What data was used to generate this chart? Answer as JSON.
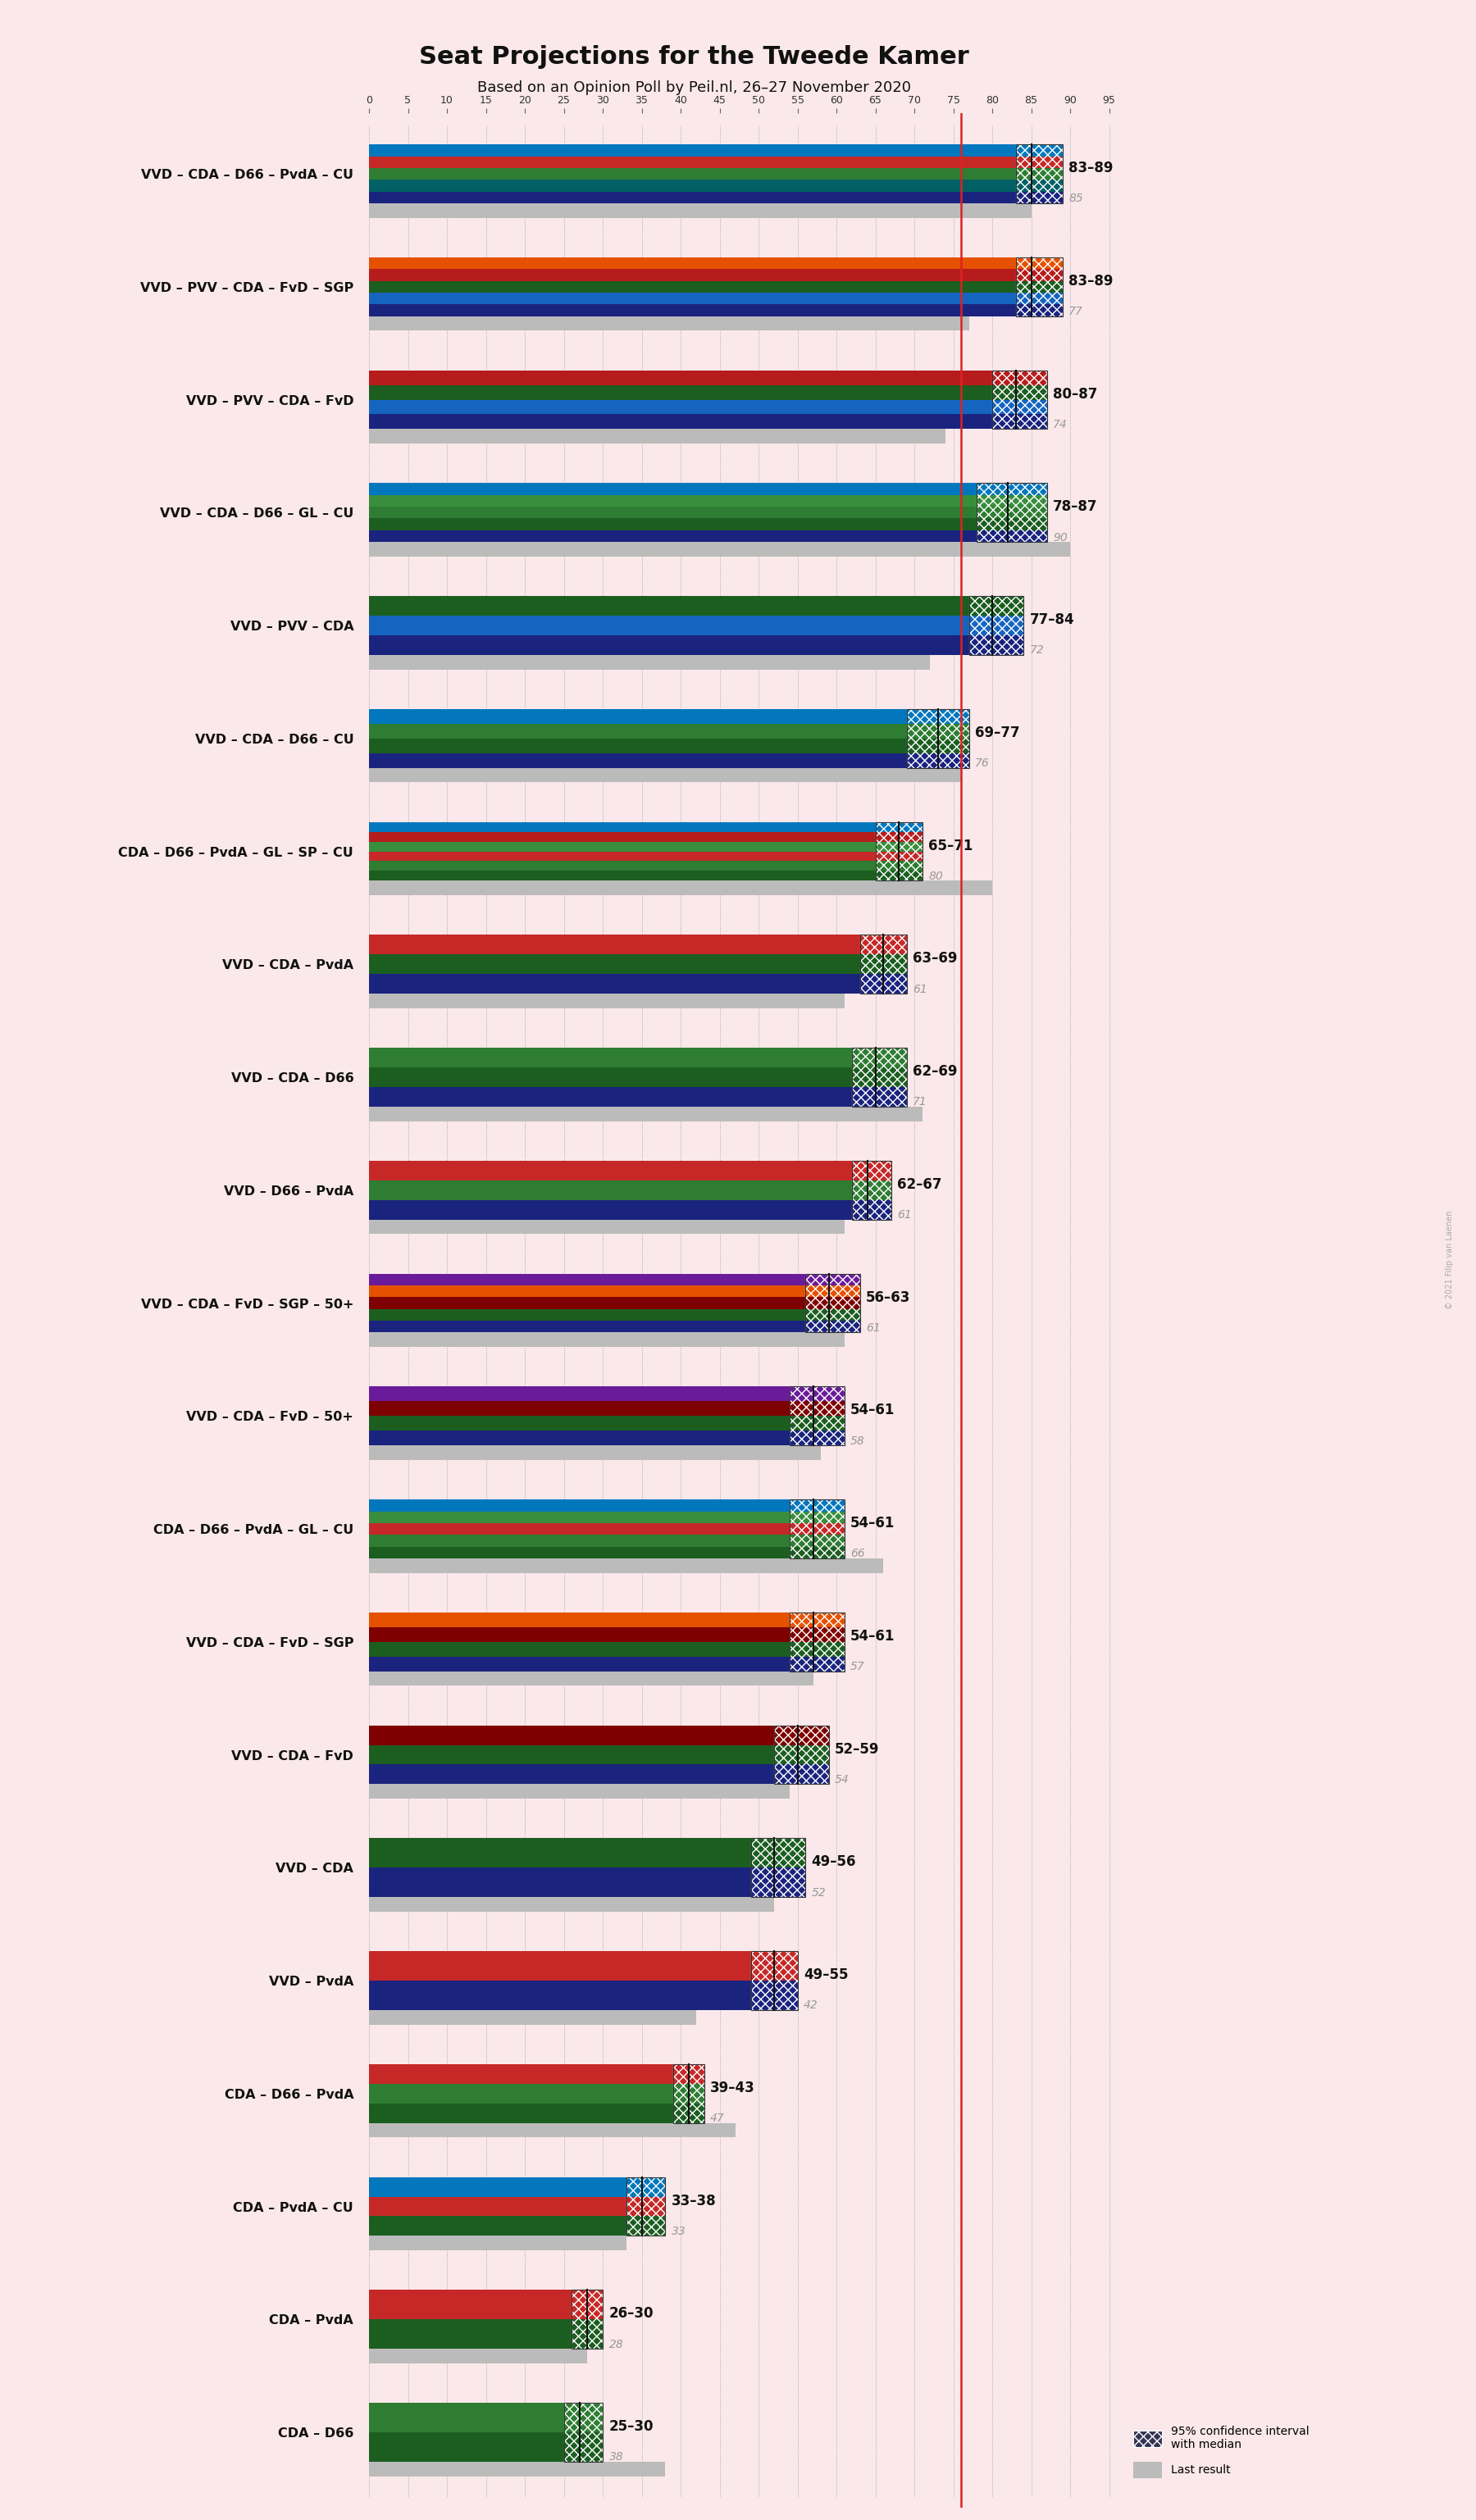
{
  "title": "Seat Projections for the Tweede Kamer",
  "subtitle": "Based on an Opinion Poll by Peil.nl, 26–27 November 2020",
  "background_color": "#fae8ea",
  "majority_line": 76,
  "x_max": 95,
  "coalitions": [
    {
      "name": "VVD – CDA – D66 – PvdA – CU",
      "ci_low": 83,
      "ci_high": 89,
      "median": 85,
      "last": 85,
      "underlined": false
    },
    {
      "name": "VVD – PVV – CDA – FvD – SGP",
      "ci_low": 83,
      "ci_high": 89,
      "median": 85,
      "last": 77,
      "underlined": false
    },
    {
      "name": "VVD – PVV – CDA – FvD",
      "ci_low": 80,
      "ci_high": 87,
      "median": 83,
      "last": 74,
      "underlined": false
    },
    {
      "name": "VVD – CDA – D66 – GL – CU",
      "ci_low": 78,
      "ci_high": 87,
      "median": 82,
      "last": 90,
      "underlined": false
    },
    {
      "name": "VVD – PVV – CDA",
      "ci_low": 77,
      "ci_high": 84,
      "median": 80,
      "last": 72,
      "underlined": false
    },
    {
      "name": "VVD – CDA – D66 – CU",
      "ci_low": 69,
      "ci_high": 77,
      "median": 73,
      "last": 76,
      "underlined": true
    },
    {
      "name": "CDA – D66 – PvdA – GL – SP – CU",
      "ci_low": 65,
      "ci_high": 71,
      "median": 68,
      "last": 80,
      "underlined": false
    },
    {
      "name": "VVD – CDA – PvdA",
      "ci_low": 63,
      "ci_high": 69,
      "median": 66,
      "last": 61,
      "underlined": false
    },
    {
      "name": "VVD – CDA – D66",
      "ci_low": 62,
      "ci_high": 69,
      "median": 65,
      "last": 71,
      "underlined": false
    },
    {
      "name": "VVD – D66 – PvdA",
      "ci_low": 62,
      "ci_high": 67,
      "median": 64,
      "last": 61,
      "underlined": false
    },
    {
      "name": "VVD – CDA – FvD – SGP – 50+",
      "ci_low": 56,
      "ci_high": 63,
      "median": 59,
      "last": 61,
      "underlined": false
    },
    {
      "name": "VVD – CDA – FvD – 50+",
      "ci_low": 54,
      "ci_high": 61,
      "median": 57,
      "last": 58,
      "underlined": false
    },
    {
      "name": "CDA – D66 – PvdA – GL – CU",
      "ci_low": 54,
      "ci_high": 61,
      "median": 57,
      "last": 66,
      "underlined": false
    },
    {
      "name": "VVD – CDA – FvD – SGP",
      "ci_low": 54,
      "ci_high": 61,
      "median": 57,
      "last": 57,
      "underlined": false
    },
    {
      "name": "VVD – CDA – FvD",
      "ci_low": 52,
      "ci_high": 59,
      "median": 55,
      "last": 54,
      "underlined": false
    },
    {
      "name": "VVD – CDA",
      "ci_low": 49,
      "ci_high": 56,
      "median": 52,
      "last": 52,
      "underlined": false
    },
    {
      "name": "VVD – PvdA",
      "ci_low": 49,
      "ci_high": 55,
      "median": 52,
      "last": 42,
      "underlined": false
    },
    {
      "name": "CDA – D66 – PvdA",
      "ci_low": 39,
      "ci_high": 43,
      "median": 41,
      "last": 47,
      "underlined": false
    },
    {
      "name": "CDA – PvdA – CU",
      "ci_low": 33,
      "ci_high": 38,
      "median": 35,
      "last": 33,
      "underlined": false
    },
    {
      "name": "CDA – PvdA",
      "ci_low": 26,
      "ci_high": 30,
      "median": 28,
      "last": 28,
      "underlined": false
    },
    {
      "name": "CDA – D66",
      "ci_low": 25,
      "ci_high": 30,
      "median": 27,
      "last": 38,
      "underlined": false
    }
  ],
  "coalition_colors": [
    [
      "#1a237e",
      "#006064",
      "#2e7d32",
      "#c62828",
      "#0277bd"
    ],
    [
      "#1a237e",
      "#1565c0",
      "#1b5e20",
      "#b71c1c",
      "#e65100"
    ],
    [
      "#1a237e",
      "#1565c0",
      "#1b5e20",
      "#b71c1c"
    ],
    [
      "#1a237e",
      "#1b5e20",
      "#2e7d32",
      "#388e3c",
      "#0277bd"
    ],
    [
      "#1a237e",
      "#1565c0",
      "#1b5e20"
    ],
    [
      "#1a237e",
      "#1b5e20",
      "#2e7d32",
      "#0277bd"
    ],
    [
      "#1b5e20",
      "#2e7d32",
      "#c62828",
      "#388e3c",
      "#b71c1c",
      "#0277bd"
    ],
    [
      "#1a237e",
      "#1b5e20",
      "#c62828"
    ],
    [
      "#1a237e",
      "#1b5e20",
      "#2e7d32"
    ],
    [
      "#1a237e",
      "#2e7d32",
      "#c62828"
    ],
    [
      "#1a237e",
      "#1b5e20",
      "#7f0000",
      "#e65100",
      "#6a1b9a"
    ],
    [
      "#1a237e",
      "#1b5e20",
      "#7f0000",
      "#6a1b9a"
    ],
    [
      "#1b5e20",
      "#2e7d32",
      "#c62828",
      "#388e3c",
      "#0277bd"
    ],
    [
      "#1a237e",
      "#1b5e20",
      "#7f0000",
      "#e65100"
    ],
    [
      "#1a237e",
      "#1b5e20",
      "#7f0000"
    ],
    [
      "#1a237e",
      "#1b5e20"
    ],
    [
      "#1a237e",
      "#c62828"
    ],
    [
      "#1b5e20",
      "#2e7d32",
      "#c62828"
    ],
    [
      "#1b5e20",
      "#c62828",
      "#0277bd"
    ],
    [
      "#1b5e20",
      "#c62828"
    ],
    [
      "#1b5e20",
      "#2e7d32"
    ]
  ]
}
